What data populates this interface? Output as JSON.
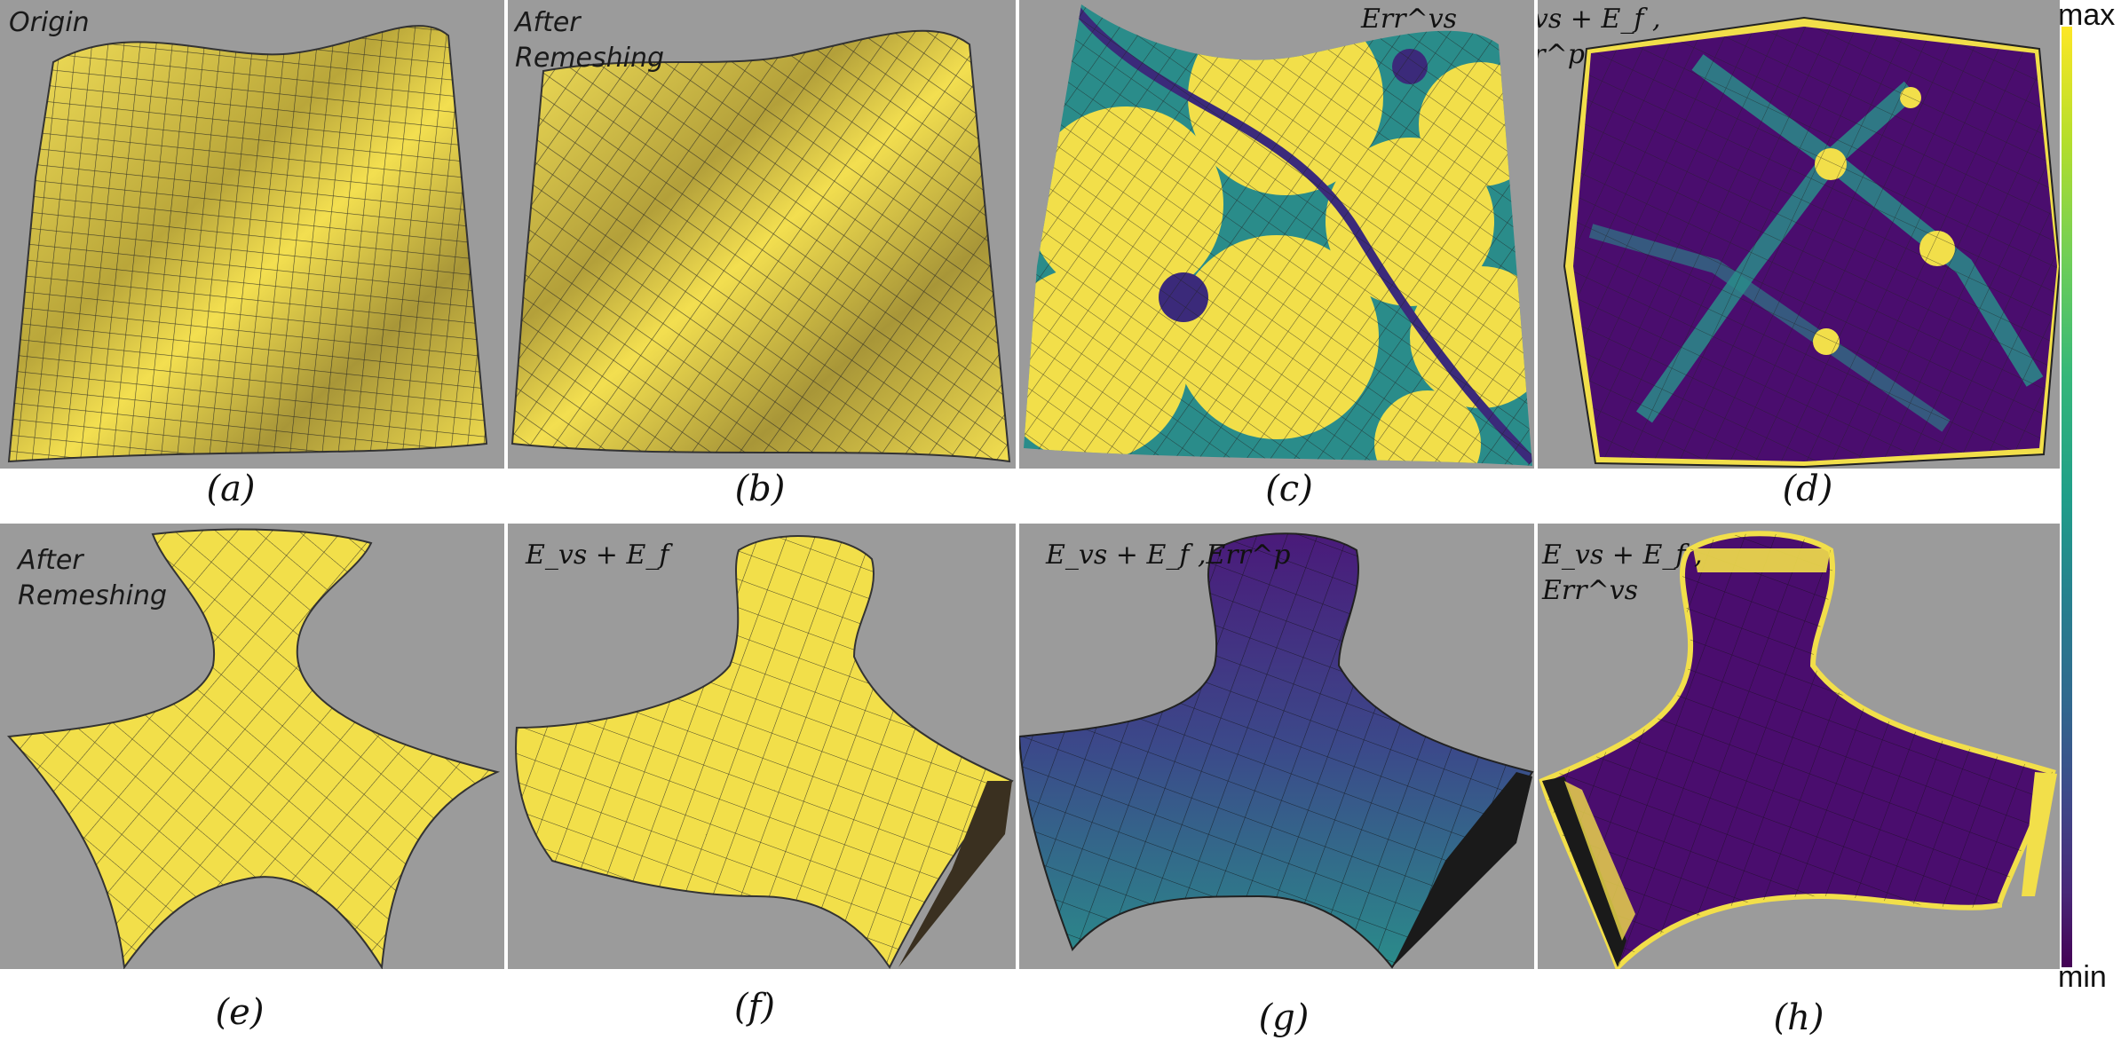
{
  "panels": {
    "a": {
      "tag": "Origin",
      "caption": "(a)"
    },
    "b": {
      "tag": "After\nRemeshing",
      "caption": "(b)"
    },
    "c": {
      "label": "Err^vs",
      "caption": "(c)"
    },
    "d": {
      "label": "E_vs + E_f ,\nErr^p",
      "caption": "(d)"
    },
    "e": {
      "tag": "After\nRemeshing",
      "caption": "(e)"
    },
    "f": {
      "label": "E_vs + E_f",
      "caption": "(f)"
    },
    "g": {
      "label": "E_vs + E_f ,Err^p",
      "caption": "(g)"
    },
    "h": {
      "label": "E_vs + E_f ,\nErr^vs",
      "caption": "(h)"
    }
  },
  "colorbar": {
    "max_label": "max",
    "min_label": "min",
    "colors": [
      "#fde725",
      "#35b779",
      "#1f9e89",
      "#31688e",
      "#440154"
    ]
  },
  "surface_colors": {
    "yellow": "#f2df4a",
    "dark_purple": "#4a0d6e",
    "mid_purple": "#3b3a86",
    "teal": "#2a8c8a"
  }
}
